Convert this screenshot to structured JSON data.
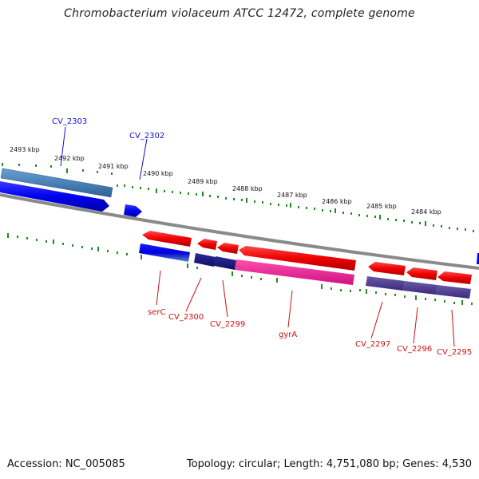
{
  "title": "Chromobacterium violaceum ATCC 12472, complete genome",
  "footer": {
    "accession": "Accession: NC_005085",
    "info": "Topology: circular; Length: 4,751,080 bp; Genes: 4,530"
  },
  "ruler_labels": [
    "2493 kbp",
    "2492 kbp",
    "2491 kbp",
    "2490 kbp",
    "2489 kbp",
    "2488 kbp",
    "2487 kbp",
    "2486 kbp",
    "2485 kbp",
    "2484 kbp"
  ],
  "gene_labels": {
    "forward": [
      "CV_2303",
      "CV_2302"
    ],
    "reverse": [
      "serC",
      "CV_2300",
      "CV_2299",
      "gyrA",
      "CV_2297",
      "CV_2296",
      "CV_2295"
    ]
  },
  "colors": {
    "forward_label": "#1010cc",
    "reverse_label": "#cc1010",
    "tick": "#228b22",
    "backbone": "#888888",
    "forward_cds": "#0000ee",
    "forward_gene": "#4a82b8",
    "reverse_cds": "#ee0000",
    "reverse_gene_dark": "#1a1a80",
    "reverse_gene_purple": "#4a3a8a",
    "reverse_gene_pink": "#ee2090"
  }
}
